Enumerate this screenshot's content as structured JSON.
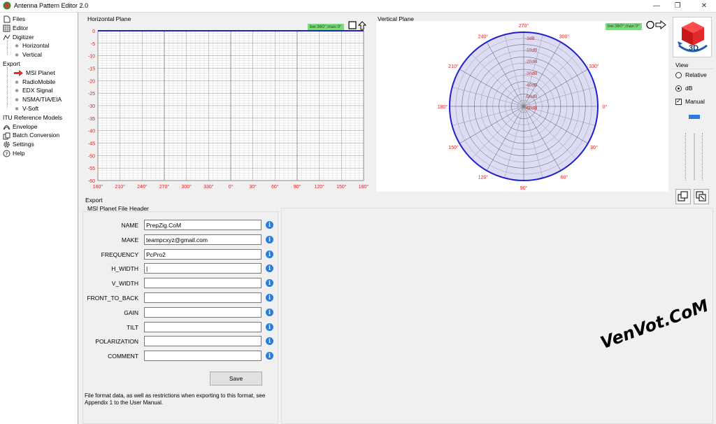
{
  "window": {
    "title": "Antenna Pattern Editor 2.0",
    "minimize": "—",
    "maximize": "❐",
    "close": "✕"
  },
  "sidebar": {
    "items": [
      {
        "label": "Files",
        "icon": "files-icon",
        "level": 0
      },
      {
        "label": "Editor",
        "icon": "editor-grid-icon",
        "level": 0
      },
      {
        "label": "Digitizer",
        "icon": "digitizer-icon",
        "level": 0
      },
      {
        "label": "Horizontal",
        "icon": "dot-icon",
        "level": 1
      },
      {
        "label": "Vertical",
        "icon": "dot-icon",
        "level": 1
      },
      {
        "label": "Export",
        "icon": "",
        "level": 0
      },
      {
        "label": "MSI Planet",
        "icon": "arrow-right-icon",
        "level": 1
      },
      {
        "label": "RadioMobile",
        "icon": "dot-icon",
        "level": 1
      },
      {
        "label": "EDX Signal",
        "icon": "dot-icon",
        "level": 1
      },
      {
        "label": "NSMA/TIA/EIA",
        "icon": "dot-icon",
        "level": 1
      },
      {
        "label": "V-Soft",
        "icon": "dot-icon",
        "level": 1
      },
      {
        "label": "ITU Reference Models",
        "icon": "",
        "level": 0
      },
      {
        "label": "Envelope",
        "icon": "envelope-icon",
        "level": 0
      },
      {
        "label": "Batch Conversion",
        "icon": "batch-icon",
        "level": 0
      },
      {
        "label": "Settings",
        "icon": "gear-icon",
        "level": 0
      },
      {
        "label": "Help",
        "icon": "help-icon",
        "level": 0
      }
    ]
  },
  "horizontal_plane": {
    "title": "Horizontal Plane",
    "badge": "bw:360°;max:0°",
    "y_ticks": [
      "0",
      "-5",
      "-10",
      "-15",
      "-20",
      "-25",
      "-30",
      "-35",
      "-40",
      "-45",
      "-50",
      "-55",
      "-60"
    ],
    "x_ticks": [
      "180°",
      "210°",
      "240°",
      "270°",
      "300°",
      "330°",
      "0°",
      "30°",
      "60°",
      "90°",
      "120°",
      "150°",
      "180°"
    ]
  },
  "vertical_plane": {
    "title": "Vertical Plane",
    "badge": "bw:360°;max:0°",
    "angle_labels": [
      {
        "deg": 0,
        "label": "0°"
      },
      {
        "deg": 30,
        "label": "30°"
      },
      {
        "deg": 60,
        "label": "60°"
      },
      {
        "deg": 90,
        "label": "90°"
      },
      {
        "deg": 120,
        "label": "120°"
      },
      {
        "deg": 150,
        "label": "150°"
      },
      {
        "deg": 180,
        "label": "180°"
      },
      {
        "deg": 210,
        "label": "210°"
      },
      {
        "deg": 240,
        "label": "240°"
      },
      {
        "deg": 270,
        "label": "270°"
      },
      {
        "deg": 300,
        "label": "300°"
      },
      {
        "deg": 330,
        "label": "330°"
      }
    ],
    "ring_labels": [
      "-3dB",
      "-10dB",
      "-20dB",
      "-30dB",
      "-40dB",
      "-50dB",
      "-60dB"
    ]
  },
  "view": {
    "cube_label": "3D",
    "title": "View",
    "relative": "Relative",
    "db": "dB",
    "manual": "Manual",
    "selected": "dB",
    "manual_checked": true
  },
  "export": {
    "section_label": "Export",
    "group_title": "MSI Planet File Header",
    "fields": [
      {
        "label": "NAME",
        "value": "PrepZig.CoM"
      },
      {
        "label": "MAKE",
        "value": "teampcxyz@gmail.com"
      },
      {
        "label": "FREQUENCY",
        "value": "PcPro2"
      },
      {
        "label": "H_WIDTH",
        "value": "|"
      },
      {
        "label": "V_WIDTH",
        "value": ""
      },
      {
        "label": "FRONT_TO_BACK",
        "value": ""
      },
      {
        "label": "GAIN",
        "value": ""
      },
      {
        "label": "TILT",
        "value": ""
      },
      {
        "label": "POLARIZATION",
        "value": ""
      },
      {
        "label": "COMMENT",
        "value": ""
      }
    ],
    "info_glyph": "i",
    "save_label": "Save",
    "note": "File format data, as well as restrictions when exporting to this format, see Appendix 1 to the User Manual."
  },
  "watermark": "VenVot.CoM",
  "colors": {
    "trace": "#1f1fcf",
    "grid_minor": "#d8d8d8",
    "grid_major": "#8a8a8a",
    "tick_red": "#e02020",
    "polar_fill": "#dcdcf5",
    "badge_green": "#7fd97f"
  }
}
